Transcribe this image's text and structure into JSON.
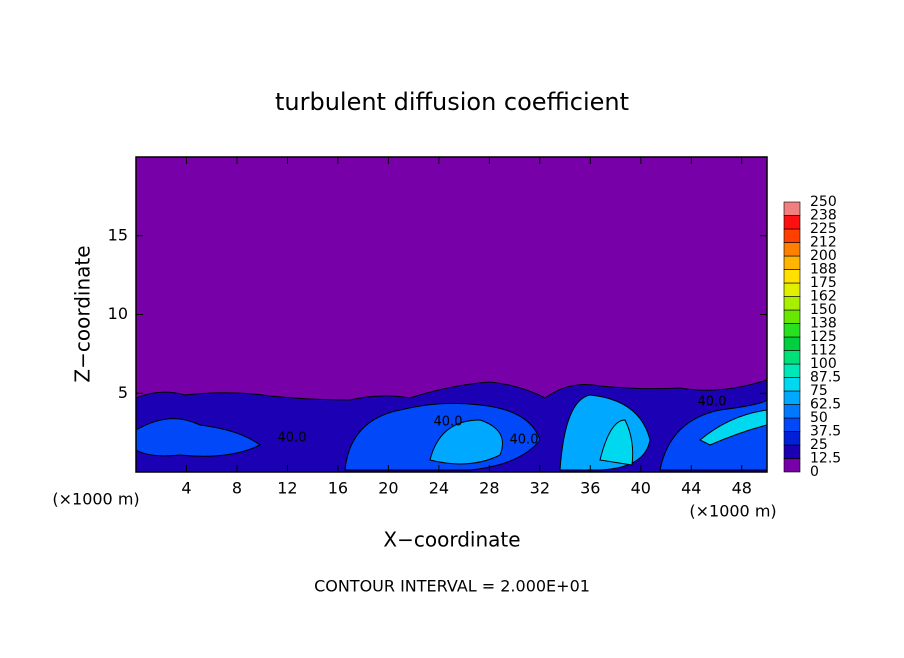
{
  "chart_data": {
    "type": "contour",
    "title": "turbulent diffusion coefficient",
    "x_label": "X−coordinate",
    "y_label": "Z−coordinate",
    "x_unit": "(×1000 m)",
    "x_unit_right": "(×1000 m)",
    "footer": "CONTOUR INTERVAL = 2.000E+01",
    "contour_labels": [
      "40.0",
      "40.0",
      "40.0",
      "40.0"
    ],
    "xlim": [
      0,
      50
    ],
    "xticks": [
      4,
      8,
      12,
      16,
      20,
      24,
      28,
      32,
      36,
      40,
      44,
      48
    ],
    "ylim": [
      0,
      20
    ],
    "yticks": [
      5,
      10,
      15
    ],
    "colorbar": {
      "lim": [
        0,
        250
      ],
      "ticks": [
        0,
        12.5,
        25,
        37.5,
        50,
        62.5,
        75,
        87.5,
        100,
        {
          "value": 112.5,
          "label": "112"
        },
        125,
        {
          "value": 137.5,
          "label": "138"
        },
        150,
        {
          "value": 162.5,
          "label": "162"
        },
        175,
        {
          "value": 187.5,
          "label": "188"
        },
        200,
        {
          "value": 212.5,
          "label": "212"
        },
        225,
        {
          "value": 237.5,
          "label": "238"
        },
        250
      ],
      "colors": [
        "#7800a8",
        "#1c00b4",
        "#0020d8",
        "#0048f8",
        "#0078ff",
        "#00a8ff",
        "#00d8f0",
        "#00e8b8",
        "#00e078",
        "#00d040",
        "#28e020",
        "#68e800",
        "#a8f000",
        "#e0f000",
        "#ffe000",
        "#ffb400",
        "#ff8000",
        "#ff4000",
        "#ff1010",
        "#f08080"
      ]
    }
  }
}
